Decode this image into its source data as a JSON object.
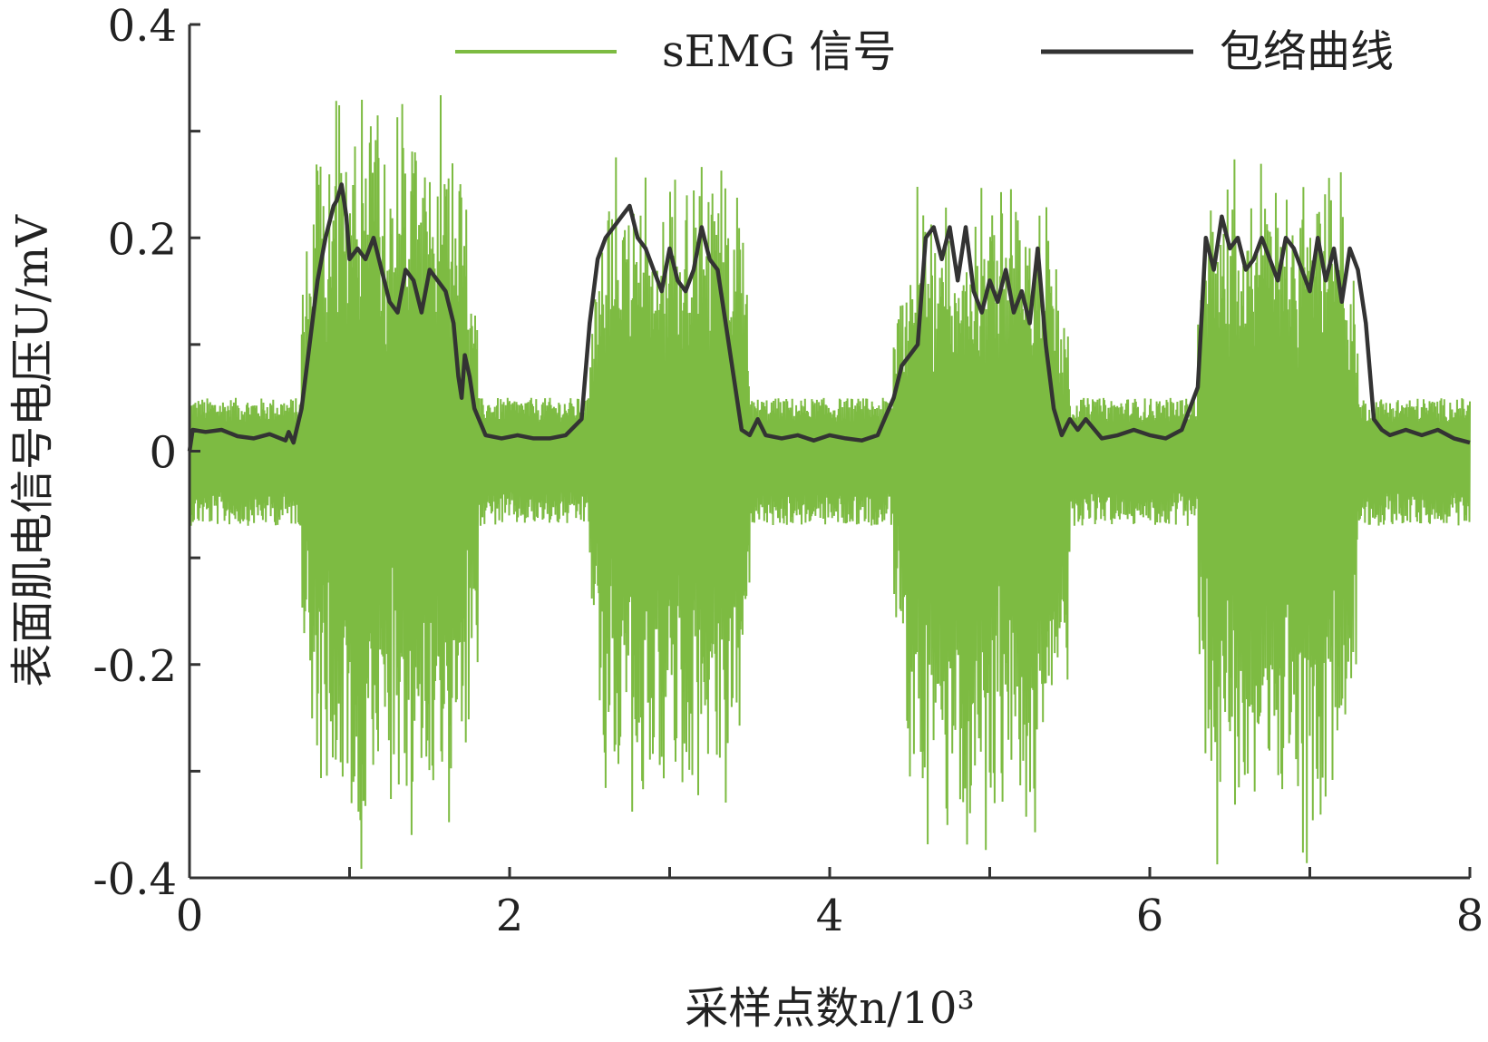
{
  "chart_data": {
    "type": "line",
    "title": "",
    "xlabel": "采样点数n/10³",
    "ylabel": "表面肌电信号电压U/mV",
    "xlim": [
      0,
      8
    ],
    "ylim": [
      -0.4,
      0.4
    ],
    "xticks": [
      "0",
      "2",
      "4",
      "6",
      "8"
    ],
    "yticks": [
      "-0.4",
      "-0.2",
      "0",
      "0.2",
      "0.4"
    ],
    "grid": false,
    "legend_position": "top",
    "series": [
      {
        "name": "sEMG 信号",
        "color": "#7dbb42",
        "description_note": "",
        "bursts": [
          {
            "x_start": 0.7,
            "x_end": 1.8,
            "max": 0.35,
            "min": -0.4
          },
          {
            "x_start": 2.5,
            "x_end": 3.5,
            "max": 0.29,
            "min": -0.36
          },
          {
            "x_start": 4.4,
            "x_end": 5.5,
            "max": 0.26,
            "min": -0.4
          },
          {
            "x_start": 6.3,
            "x_end": 7.3,
            "max": 0.29,
            "min": -0.4
          }
        ],
        "baseline_range": [
          -0.07,
          0.05
        ]
      },
      {
        "name": "包络曲线",
        "color": "#333333",
        "x": [
          0,
          0.02,
          0.1,
          0.2,
          0.3,
          0.4,
          0.5,
          0.6,
          0.62,
          0.65,
          0.7,
          0.75,
          0.8,
          0.85,
          0.9,
          0.92,
          0.95,
          0.98,
          1.0,
          1.05,
          1.1,
          1.15,
          1.2,
          1.25,
          1.3,
          1.35,
          1.4,
          1.45,
          1.5,
          1.55,
          1.6,
          1.65,
          1.68,
          1.7,
          1.72,
          1.75,
          1.78,
          1.85,
          1.95,
          2.05,
          2.15,
          2.25,
          2.35,
          2.45,
          2.5,
          2.55,
          2.6,
          2.65,
          2.7,
          2.75,
          2.8,
          2.85,
          2.9,
          2.95,
          3.0,
          3.05,
          3.1,
          3.15,
          3.2,
          3.25,
          3.3,
          3.35,
          3.4,
          3.45,
          3.5,
          3.55,
          3.6,
          3.7,
          3.8,
          3.9,
          4.0,
          4.1,
          4.2,
          4.3,
          4.4,
          4.45,
          4.5,
          4.55,
          4.6,
          4.65,
          4.7,
          4.75,
          4.8,
          4.85,
          4.9,
          4.95,
          5.0,
          5.05,
          5.1,
          5.15,
          5.2,
          5.25,
          5.3,
          5.35,
          5.4,
          5.45,
          5.5,
          5.55,
          5.6,
          5.7,
          5.8,
          5.9,
          6.0,
          6.1,
          6.2,
          6.25,
          6.3,
          6.35,
          6.4,
          6.45,
          6.5,
          6.55,
          6.6,
          6.65,
          6.7,
          6.75,
          6.8,
          6.85,
          6.9,
          6.95,
          7.0,
          7.05,
          7.1,
          7.15,
          7.2,
          7.25,
          7.3,
          7.35,
          7.4,
          7.45,
          7.5,
          7.6,
          7.7,
          7.8,
          7.9,
          8.0
        ],
        "values": [
          0.0,
          0.02,
          0.018,
          0.02,
          0.014,
          0.012,
          0.016,
          0.01,
          0.018,
          0.008,
          0.04,
          0.1,
          0.16,
          0.2,
          0.23,
          0.235,
          0.25,
          0.22,
          0.18,
          0.19,
          0.18,
          0.2,
          0.17,
          0.14,
          0.13,
          0.17,
          0.16,
          0.13,
          0.17,
          0.16,
          0.15,
          0.12,
          0.07,
          0.05,
          0.09,
          0.07,
          0.04,
          0.015,
          0.012,
          0.015,
          0.012,
          0.012,
          0.015,
          0.03,
          0.12,
          0.18,
          0.2,
          0.21,
          0.22,
          0.23,
          0.2,
          0.19,
          0.17,
          0.15,
          0.19,
          0.16,
          0.15,
          0.17,
          0.21,
          0.18,
          0.17,
          0.12,
          0.07,
          0.02,
          0.015,
          0.03,
          0.015,
          0.012,
          0.015,
          0.01,
          0.015,
          0.012,
          0.01,
          0.015,
          0.05,
          0.08,
          0.09,
          0.1,
          0.2,
          0.21,
          0.18,
          0.21,
          0.16,
          0.21,
          0.15,
          0.13,
          0.16,
          0.14,
          0.17,
          0.13,
          0.15,
          0.12,
          0.19,
          0.1,
          0.04,
          0.015,
          0.03,
          0.02,
          0.03,
          0.012,
          0.015,
          0.02,
          0.015,
          0.012,
          0.02,
          0.04,
          0.06,
          0.2,
          0.17,
          0.22,
          0.19,
          0.2,
          0.17,
          0.18,
          0.2,
          0.18,
          0.16,
          0.2,
          0.19,
          0.17,
          0.15,
          0.2,
          0.16,
          0.19,
          0.14,
          0.19,
          0.17,
          0.12,
          0.03,
          0.02,
          0.015,
          0.02,
          0.015,
          0.02,
          0.012,
          0.008
        ]
      }
    ]
  }
}
